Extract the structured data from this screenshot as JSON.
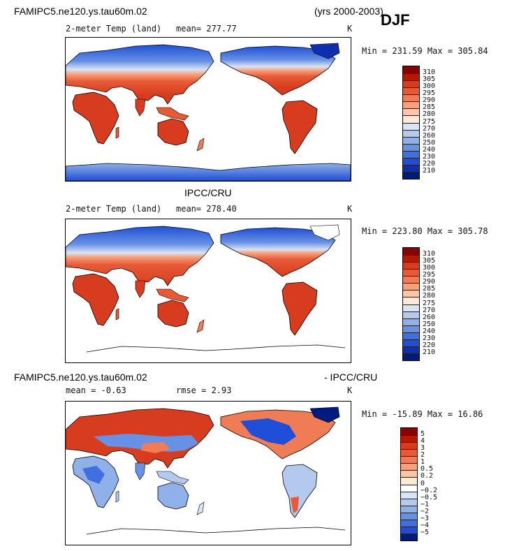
{
  "header": {
    "run_name": "FAMIPC5.ne120.ys.tau60m.02",
    "years": "(yrs 2000-2003)",
    "season": "DJF"
  },
  "panels": [
    {
      "id": "model",
      "variable": "2-meter Temp (land)",
      "mean_text": "mean= 277.77",
      "units": "K",
      "minmax": "Min = 231.59 Max = 305.84",
      "colorbar": {
        "labels": [
          "310",
          "305",
          "300",
          "295",
          "290",
          "285",
          "280",
          "275",
          "270",
          "260",
          "250",
          "240",
          "230",
          "220",
          "210"
        ],
        "colors": [
          "#8b0000",
          "#b51a00",
          "#d73c1e",
          "#e85a35",
          "#f07c56",
          "#f7a07c",
          "#fcc6a8",
          "#fde9d6",
          "#d9e4f5",
          "#b3c9ee",
          "#8fb0e8",
          "#6791e4",
          "#3f6fe0",
          "#1f4fd6",
          "#0f2fb0",
          "#001a80"
        ]
      }
    },
    {
      "id": "obs",
      "title": "IPCC/CRU",
      "variable": "2-meter Temp (land)",
      "mean_text": "mean= 278.40",
      "units": "K",
      "minmax": "Min = 223.80 Max = 305.78",
      "colorbar": {
        "labels": [
          "310",
          "305",
          "300",
          "295",
          "290",
          "285",
          "280",
          "275",
          "270",
          "260",
          "250",
          "240",
          "230",
          "220",
          "210"
        ],
        "colors": [
          "#8b0000",
          "#b51a00",
          "#d73c1e",
          "#e85a35",
          "#f07c56",
          "#f7a07c",
          "#fcc6a8",
          "#fde9d6",
          "#d9e4f5",
          "#b3c9ee",
          "#8fb0e8",
          "#6791e4",
          "#3f6fe0",
          "#1f4fd6",
          "#0f2fb0",
          "#001a80"
        ]
      }
    },
    {
      "id": "diff",
      "title_left": "FAMIPC5.ne120.ys.tau60m.02",
      "title_right": "- IPCC/CRU",
      "mean_text": "mean =   -0.63",
      "rmse_text": "rmse =    2.93",
      "units": "K",
      "minmax": "Min = -15.89 Max =  16.86",
      "colorbar": {
        "labels": [
          "5",
          "4",
          "3",
          "2",
          "1",
          "0.5",
          "0.2",
          "0",
          "−0.2",
          "−0.5",
          "−1",
          "−2",
          "−3",
          "−4",
          "−5"
        ],
        "colors": [
          "#8b0000",
          "#b51a00",
          "#d73c1e",
          "#e85a35",
          "#f07c56",
          "#f7a07c",
          "#fcc6a8",
          "#fde9d6",
          "#ffffff",
          "#d9e4f5",
          "#b3c9ee",
          "#8fb0e8",
          "#6791e4",
          "#3f6fe0",
          "#1f4fd6",
          "#001a80"
        ]
      }
    }
  ]
}
